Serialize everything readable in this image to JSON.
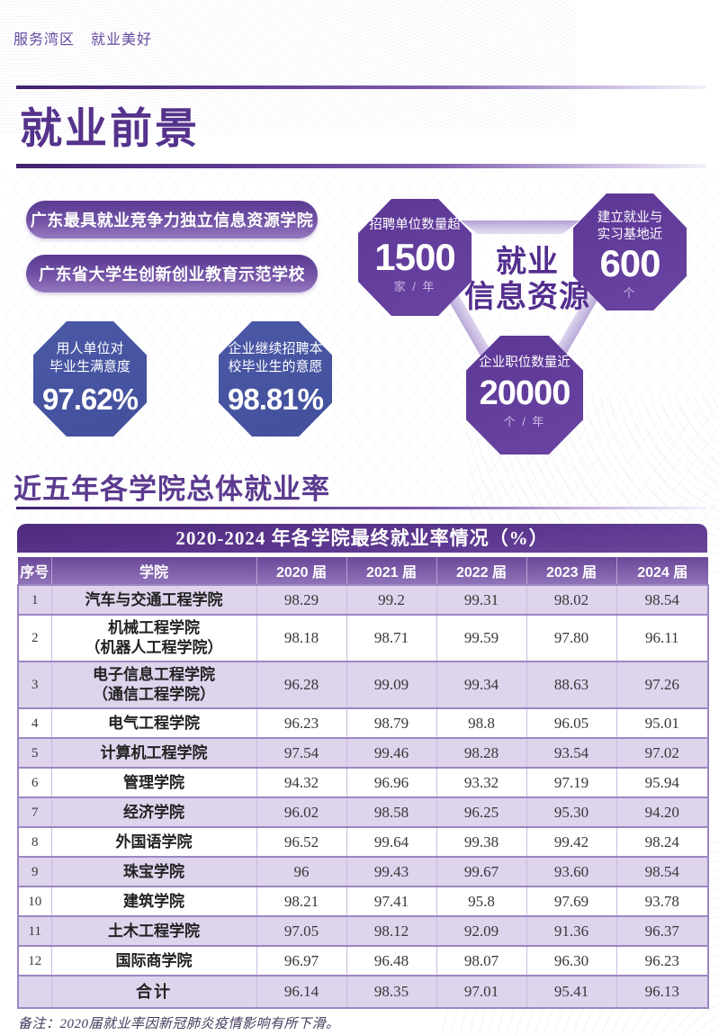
{
  "colors": {
    "accent_purple": "#55338c",
    "octagon_purple": "#5c3795",
    "octagon_blue": "#4a57a5",
    "table_header_purple": "#6b4899",
    "table_stripe": "#ded4ec"
  },
  "header": {
    "tagline_left": "服务湾区",
    "tagline_right": "就业美好",
    "title": "就业前景"
  },
  "badges": [
    "广东最具就业竞争力独立信息资源学院",
    "广东省大学生创新创业教育示范学校"
  ],
  "stats": {
    "satisfaction": {
      "label_line1": "用人单位对",
      "label_line2": "毕业生满意度",
      "value": "97.62%"
    },
    "rehire_willingness": {
      "label_line1": "企业继续招聘本",
      "label_line2": "校毕业生的意愿",
      "value": "98.81%"
    },
    "cluster": {
      "title_line1": "就业",
      "title_line2": "信息资源",
      "recruiting_units": {
        "label": "招聘单位数量超",
        "value": "1500",
        "unit": "家 / 年"
      },
      "practice_bases": {
        "label_line1": "建立就业与",
        "label_line2": "实习基地近",
        "value": "600",
        "unit": "个"
      },
      "job_positions": {
        "label": "企业职位数量近",
        "value": "20000",
        "unit": "个 / 年"
      }
    }
  },
  "section": {
    "title": "近五年各学院总体就业率"
  },
  "table": {
    "title": "2020-2024 年各学院最终就业率情况（%）",
    "columns": [
      "序号",
      "学院",
      "2020 届",
      "2021 届",
      "2022 届",
      "2023 届",
      "2024 届"
    ],
    "rows": [
      {
        "no": "1",
        "college": "汽车与交通工程学院",
        "values": [
          "98.29",
          "99.2",
          "99.31",
          "98.02",
          "98.54"
        ]
      },
      {
        "no": "2",
        "college": "机械工程学院",
        "college2": "（机器人工程学院）",
        "values": [
          "98.18",
          "98.71",
          "99.59",
          "97.80",
          "96.11"
        ]
      },
      {
        "no": "3",
        "college": "电子信息工程学院",
        "college2": "（通信工程学院）",
        "values": [
          "96.28",
          "99.09",
          "99.34",
          "88.63",
          "97.26"
        ]
      },
      {
        "no": "4",
        "college": "电气工程学院",
        "values": [
          "96.23",
          "98.79",
          "98.8",
          "96.05",
          "95.01"
        ]
      },
      {
        "no": "5",
        "college": "计算机工程学院",
        "values": [
          "97.54",
          "99.46",
          "98.28",
          "93.54",
          "97.02"
        ]
      },
      {
        "no": "6",
        "college": "管理学院",
        "values": [
          "94.32",
          "96.96",
          "93.32",
          "97.19",
          "95.94"
        ]
      },
      {
        "no": "7",
        "college": "经济学院",
        "values": [
          "96.02",
          "98.58",
          "96.25",
          "95.30",
          "94.20"
        ]
      },
      {
        "no": "8",
        "college": "外国语学院",
        "values": [
          "96.52",
          "99.64",
          "99.38",
          "99.42",
          "98.24"
        ]
      },
      {
        "no": "9",
        "college": "珠宝学院",
        "values": [
          "96",
          "99.43",
          "99.67",
          "93.60",
          "98.54"
        ]
      },
      {
        "no": "10",
        "college": "建筑学院",
        "values": [
          "98.21",
          "97.41",
          "95.8",
          "97.69",
          "93.78"
        ]
      },
      {
        "no": "11",
        "college": "土木工程学院",
        "values": [
          "97.05",
          "98.12",
          "92.09",
          "91.36",
          "96.37"
        ]
      },
      {
        "no": "12",
        "college": "国际商学院",
        "values": [
          "96.97",
          "96.48",
          "98.07",
          "96.30",
          "96.23"
        ]
      },
      {
        "no": "",
        "college": "合计",
        "values": [
          "96.14",
          "98.35",
          "97.01",
          "95.41",
          "96.13"
        ]
      }
    ],
    "note": "备注：2020届就业率因新冠肺炎疫情影响有所下滑。"
  }
}
